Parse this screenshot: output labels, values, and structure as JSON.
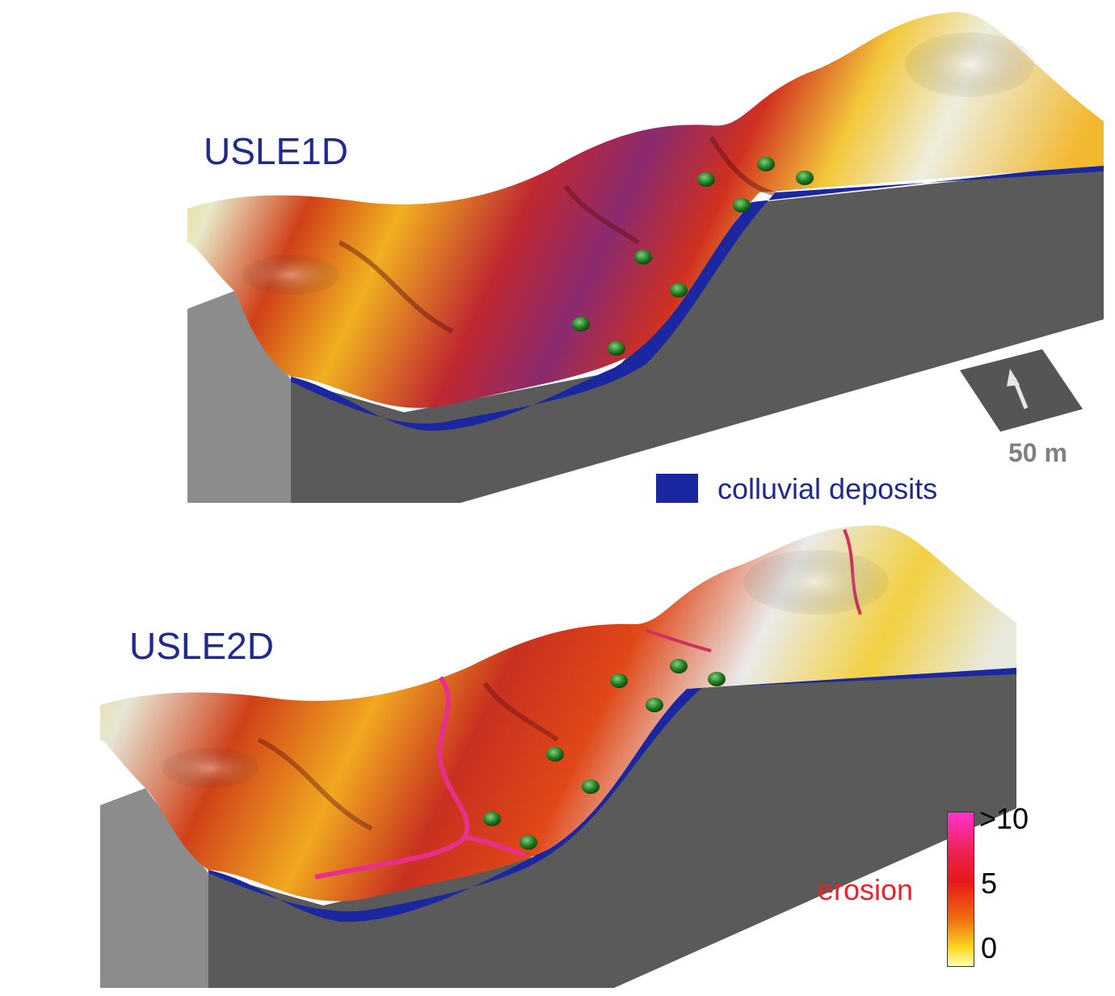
{
  "panels": [
    {
      "title": "USLE1D"
    },
    {
      "title": "USLE2D"
    }
  ],
  "legend": {
    "deposits_label": "colluvial deposits",
    "deposits_color": "#1a27a0"
  },
  "scale_bar": {
    "label": "50 m",
    "icon": "north-arrow-icon"
  },
  "colorbar": {
    "title": "erosion",
    "ticks": [
      ">10",
      "5",
      "0"
    ],
    "colors": [
      "#ff33d0",
      "#ee2255",
      "#e81818",
      "#f07010",
      "#f8d820",
      "#ffffb0"
    ]
  },
  "colors": {
    "side": "#5a5a5a",
    "side_light": "#8c8c8c",
    "marker": "#1f7a1f"
  }
}
